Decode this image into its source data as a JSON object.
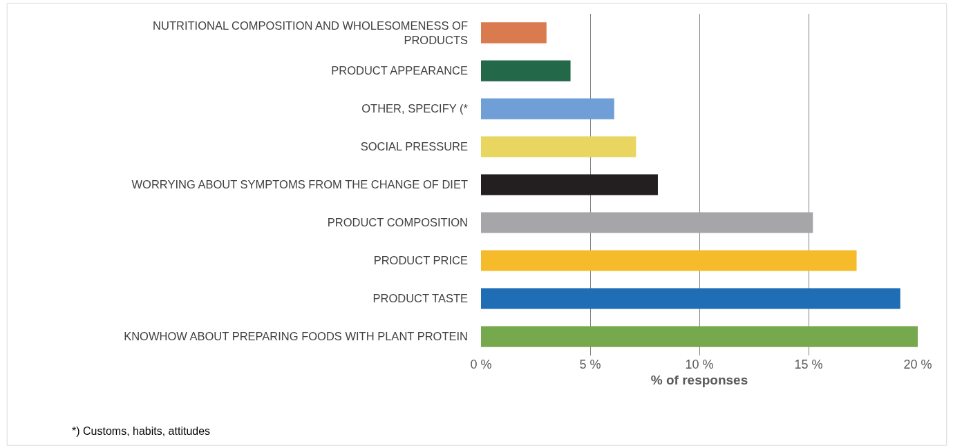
{
  "chart_data": {
    "type": "bar",
    "orientation": "horizontal",
    "xlabel": "% of responses",
    "categories": [
      "NUTRITIONAL COMPOSITION AND WHOLESOMENESS OF PRODUCTS",
      "PRODUCT APPEARANCE",
      "OTHER, SPECIFY (*",
      "SOCIAL PRESSURE",
      "WORRYING ABOUT SYMPTOMS FROM THE CHANGE OF DIET",
      "PRODUCT COMPOSITION",
      "PRODUCT PRICE",
      "PRODUCT TASTE",
      "KNOWHOW ABOUT PREPARING FOODS WITH PLANT PROTEIN"
    ],
    "values": [
      3.0,
      4.1,
      6.1,
      7.1,
      8.1,
      15.2,
      17.2,
      19.2,
      20.0
    ],
    "colors": [
      "#d97b4f",
      "#24684a",
      "#6f9fd6",
      "#e8d660",
      "#231f20",
      "#a6a6a8",
      "#f5bb2a",
      "#1e6db5",
      "#76a84e"
    ],
    "xlim": [
      0,
      20
    ],
    "xticks": [
      {
        "value": 0,
        "label": "0 %"
      },
      {
        "value": 5,
        "label": "5 %"
      },
      {
        "value": 10,
        "label": "10 %"
      },
      {
        "value": 15,
        "label": "15 %"
      },
      {
        "value": 20,
        "label": "20 %"
      }
    ],
    "grid": "x",
    "legend": false,
    "annotations": [
      "*) Customs, habits, attitudes"
    ]
  }
}
